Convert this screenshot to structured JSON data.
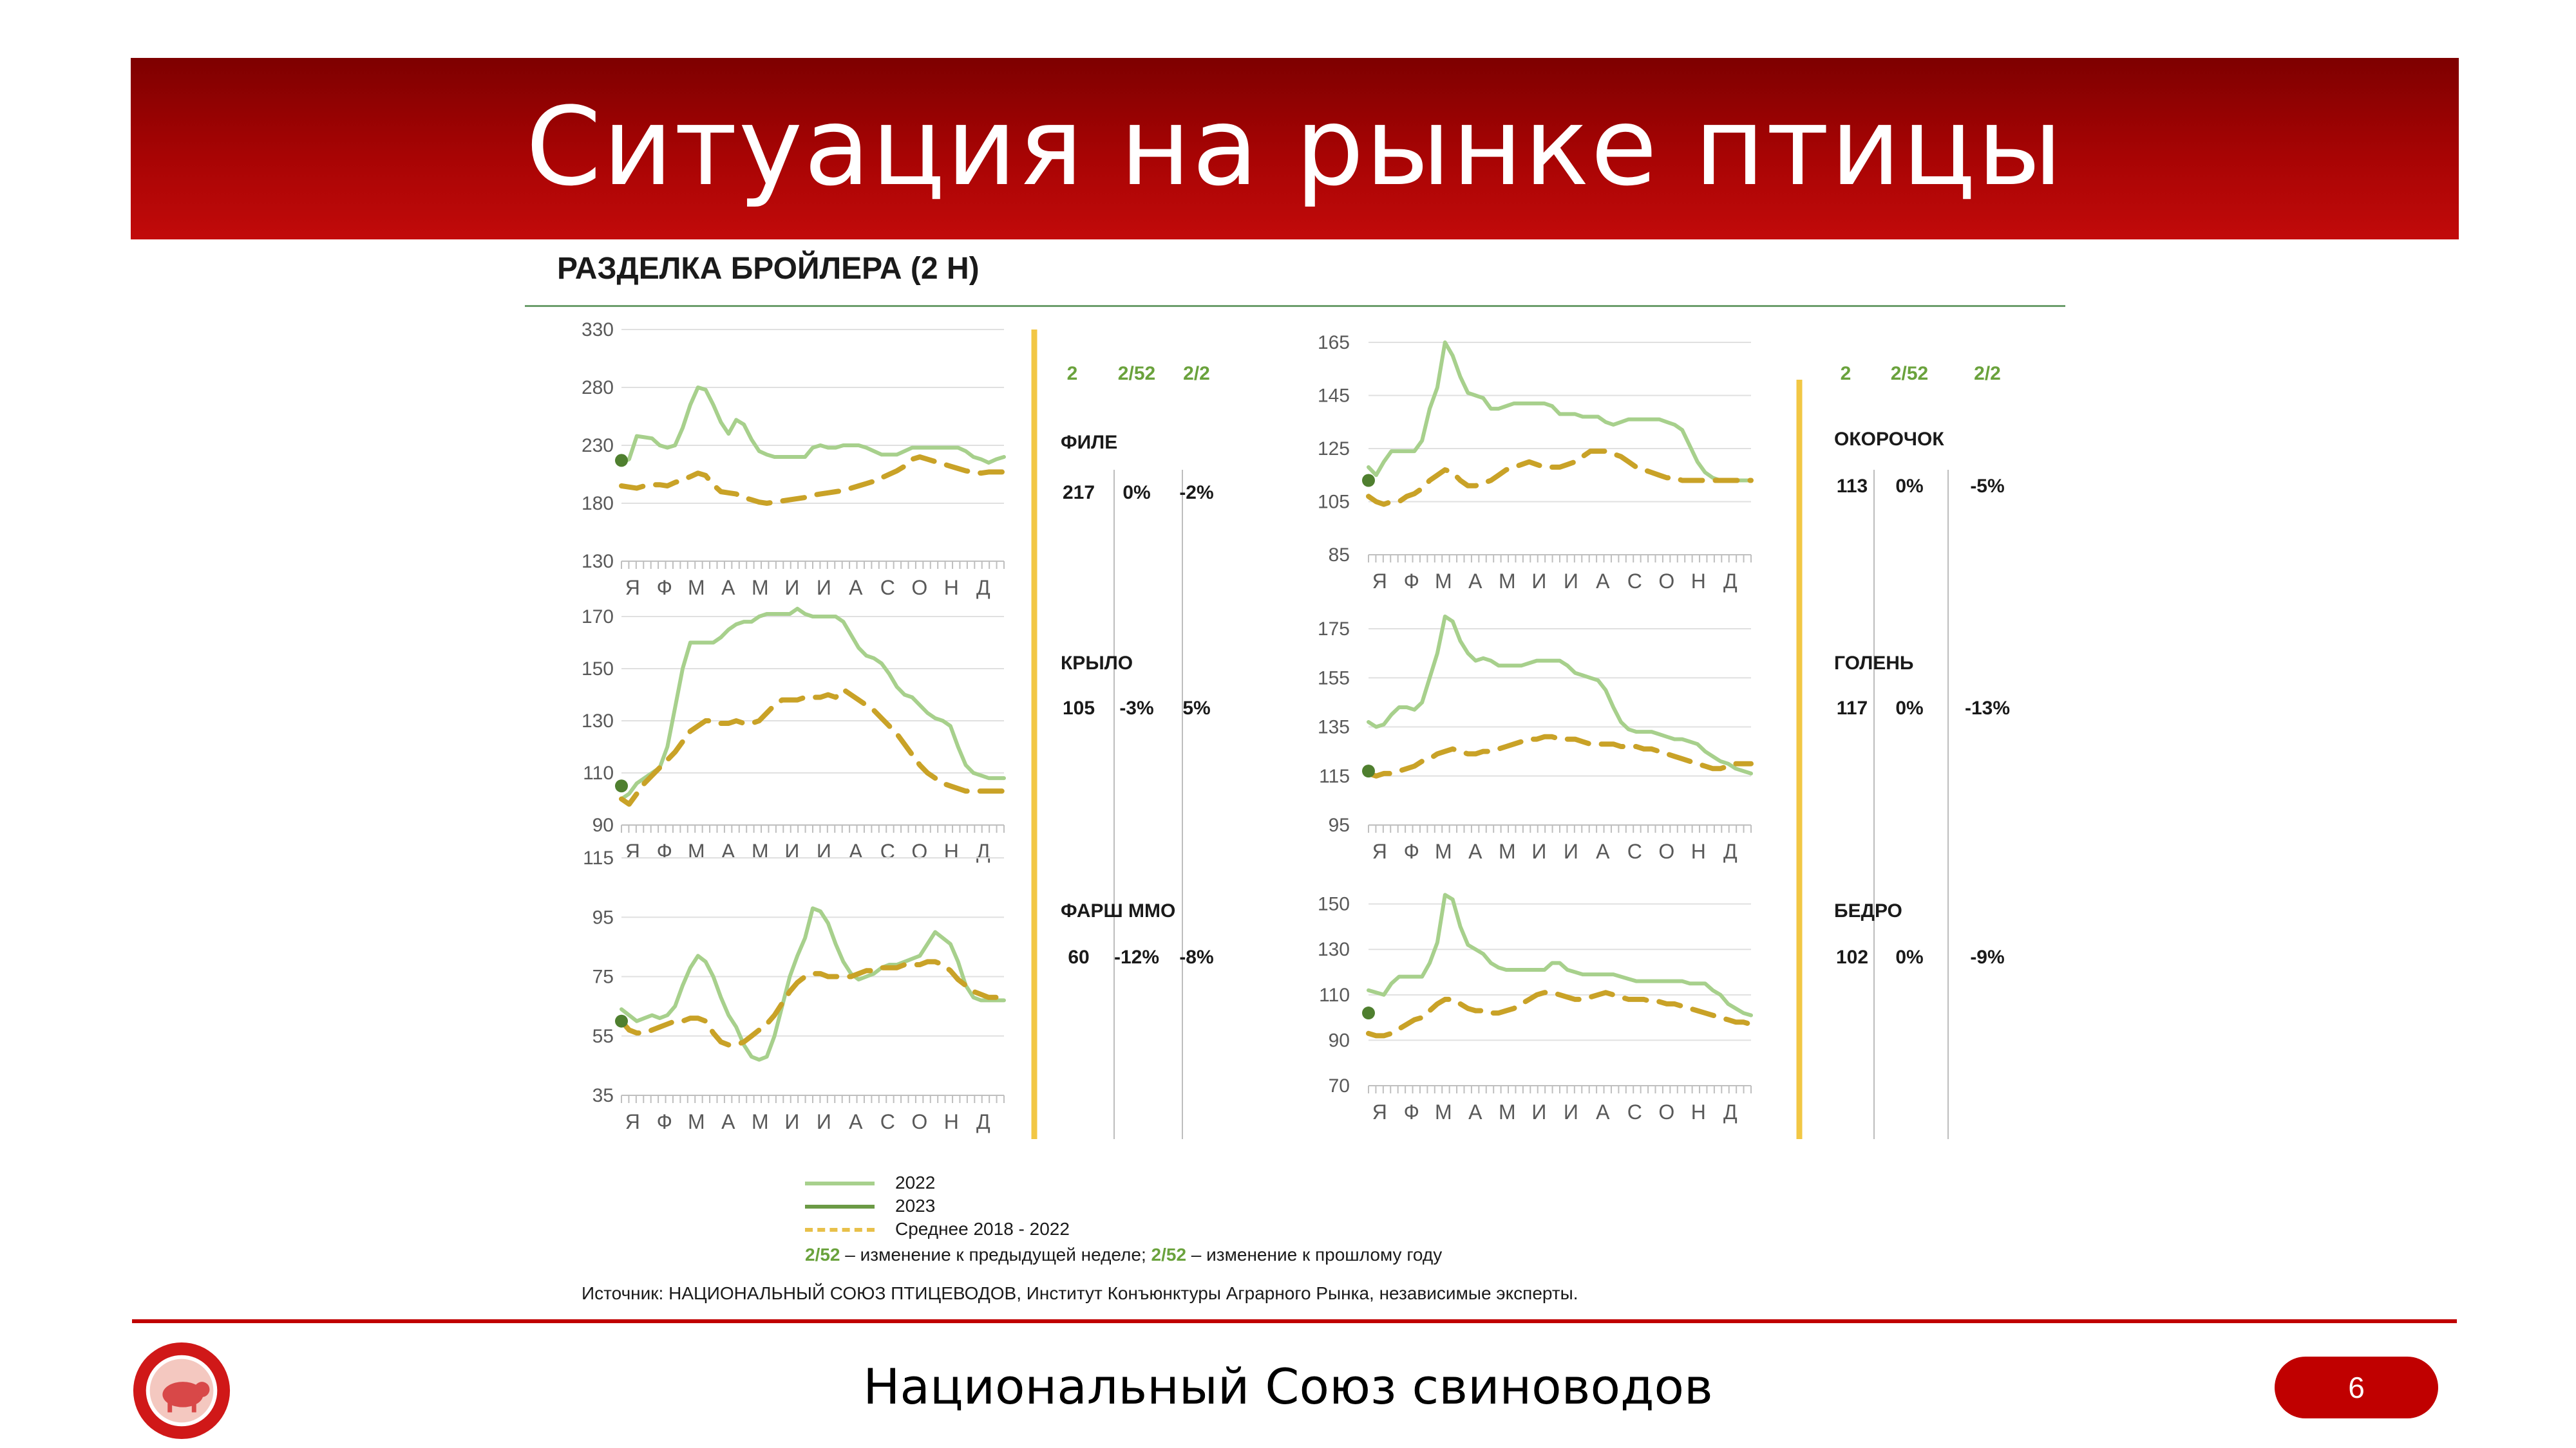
{
  "title": "Ситуация на рынке птицы",
  "subtitle": "РАЗДЕЛКА БРОЙЛЕРА (2 Н)",
  "table_header": [
    "2",
    "2/52",
    "2/2"
  ],
  "month_labels": [
    "Я",
    "Ф",
    "М",
    "А",
    "М",
    "И",
    "И",
    "А",
    "С",
    "О",
    "Н",
    "Д"
  ],
  "legend": [
    {
      "label": "2022",
      "color": "#a7d08c",
      "dash": false
    },
    {
      "label": "2023",
      "color": "#6b9a45",
      "dash": false
    },
    {
      "label": "Среднее 2018 - 2022",
      "color": "#c9a227",
      "dash": true
    }
  ],
  "footnote": {
    "key1": "2/52",
    "text1": " – изменение к предыдущей неделе; ",
    "key2": "2/52",
    "text2": " – изменение к прошлому году"
  },
  "source": "Источник: НАЦИОНАЛЬНЫЙ СОЮЗ ПТИЦЕВОДОВ, Институт Конъюнктуры Аграрного Рынка, независимые эксперты.",
  "footer": "Национальный Союз свиноводов",
  "page_number": "6",
  "colors": {
    "banner": "#a80404",
    "line_2022": "#a7d08c",
    "line_2023": "#4f7f2f",
    "avg": "#c9a227",
    "divider": "#f2c744",
    "table_header": "#6aa23c"
  },
  "chart_data": [
    {
      "type": "line",
      "name": "ФИЛЕ",
      "yticks": [
        130,
        180,
        230,
        280,
        330
      ],
      "ylim": [
        130,
        330
      ],
      "table": {
        "v2": "217",
        "v252": "0%",
        "v22": "-2%"
      },
      "series": [
        {
          "name": "2022",
          "values": [
            215,
            218,
            238,
            237,
            236,
            230,
            228,
            230,
            245,
            265,
            280,
            278,
            265,
            250,
            240,
            252,
            248,
            235,
            225,
            222,
            220,
            220,
            220,
            220,
            220,
            228,
            230,
            228,
            228,
            230,
            230,
            230,
            228,
            225,
            222,
            222,
            222,
            225,
            228,
            228,
            228,
            228,
            228,
            228,
            228,
            225,
            220,
            218,
            215,
            218,
            220
          ]
        },
        {
          "name": "2023",
          "values": [
            217,
            217
          ]
        },
        {
          "name": "Среднее 2018 - 2022",
          "values": [
            195,
            194,
            193,
            195,
            196,
            196,
            195,
            198,
            200,
            203,
            206,
            204,
            196,
            190,
            189,
            188,
            185,
            183,
            181,
            180,
            181,
            182,
            183,
            184,
            185,
            187,
            188,
            189,
            190,
            191,
            193,
            195,
            197,
            199,
            202,
            205,
            208,
            212,
            218,
            220,
            218,
            216,
            214,
            212,
            210,
            208,
            207,
            206,
            207,
            207,
            207
          ]
        }
      ]
    },
    {
      "type": "line",
      "name": "КРЫЛО",
      "yticks": [
        90,
        110,
        130,
        150,
        170
      ],
      "ylim": [
        90,
        170
      ],
      "table": {
        "v2": "105",
        "v252": "-3%",
        "v22": "5%"
      },
      "series": [
        {
          "name": "2022",
          "values": [
            100,
            102,
            106,
            108,
            110,
            112,
            120,
            135,
            150,
            160,
            160,
            160,
            160,
            162,
            165,
            167,
            168,
            168,
            170,
            171,
            171,
            171,
            171,
            173,
            171,
            170,
            170,
            170,
            170,
            168,
            163,
            158,
            155,
            154,
            152,
            148,
            143,
            140,
            139,
            136,
            133,
            131,
            130,
            128,
            120,
            113,
            110,
            109,
            108,
            108,
            108
          ]
        },
        {
          "name": "2023",
          "values": [
            105,
            105
          ]
        },
        {
          "name": "Среднее 2018 - 2022",
          "values": [
            100,
            98,
            102,
            106,
            109,
            112,
            115,
            118,
            122,
            126,
            128,
            130,
            130,
            129,
            129,
            130,
            129,
            129,
            130,
            133,
            136,
            138,
            138,
            138,
            139,
            139,
            139,
            140,
            139,
            142,
            140,
            138,
            136,
            134,
            131,
            128,
            125,
            121,
            117,
            113,
            110,
            108,
            106,
            105,
            104,
            103,
            103,
            103,
            103,
            103,
            103
          ]
        }
      ]
    },
    {
      "type": "line",
      "name": "ФАРШ ММО",
      "yticks": [
        35,
        55,
        75,
        95,
        115
      ],
      "ylim": [
        35,
        115
      ],
      "table": {
        "v2": "60",
        "v252": "-12%",
        "v22": "-8%"
      },
      "series": [
        {
          "name": "2022",
          "values": [
            64,
            62,
            60,
            61,
            62,
            61,
            62,
            65,
            72,
            78,
            82,
            80,
            75,
            68,
            62,
            58,
            52,
            48,
            47,
            48,
            55,
            65,
            75,
            82,
            88,
            98,
            97,
            93,
            86,
            80,
            76,
            74,
            75,
            76,
            78,
            79,
            79,
            80,
            81,
            82,
            86,
            90,
            88,
            86,
            80,
            72,
            68,
            67,
            67,
            67,
            67
          ]
        },
        {
          "name": "2023",
          "values": [
            60,
            60
          ]
        },
        {
          "name": "Среднее 2018 - 2022",
          "values": [
            60,
            57,
            56,
            56,
            57,
            58,
            59,
            60,
            60,
            61,
            61,
            60,
            56,
            53,
            52,
            52,
            53,
            55,
            57,
            59,
            62,
            66,
            70,
            73,
            75,
            76,
            76,
            75,
            75,
            75,
            75,
            76,
            77,
            77,
            78,
            78,
            78,
            79,
            79,
            79,
            80,
            80,
            79,
            77,
            74,
            72,
            70,
            69,
            68,
            68,
            68
          ]
        }
      ]
    },
    {
      "type": "line",
      "name": "ОКОРОЧОК",
      "yticks": [
        85,
        105,
        125,
        145,
        165
      ],
      "ylim": [
        85,
        165
      ],
      "table": {
        "v2": "113",
        "v252": "0%",
        "v22": "-5%"
      },
      "series": [
        {
          "name": "2022",
          "values": [
            118,
            115,
            120,
            124,
            124,
            124,
            124,
            128,
            140,
            148,
            165,
            160,
            152,
            146,
            145,
            144,
            140,
            140,
            141,
            142,
            142,
            142,
            142,
            142,
            141,
            138,
            138,
            138,
            137,
            137,
            137,
            135,
            134,
            135,
            136,
            136,
            136,
            136,
            136,
            135,
            134,
            132,
            126,
            120,
            116,
            114,
            113,
            113,
            113,
            113,
            113
          ]
        },
        {
          "name": "2023",
          "values": [
            113,
            113
          ]
        },
        {
          "name": "Среднее 2018 - 2022",
          "values": [
            107,
            105,
            104,
            105,
            105,
            107,
            108,
            110,
            113,
            115,
            117,
            116,
            113,
            111,
            111,
            112,
            113,
            115,
            117,
            118,
            119,
            120,
            119,
            118,
            118,
            118,
            119,
            120,
            122,
            124,
            124,
            124,
            123,
            122,
            120,
            118,
            117,
            116,
            115,
            114,
            114,
            113,
            113,
            113,
            113,
            113,
            113,
            113,
            113,
            113,
            113
          ]
        }
      ]
    },
    {
      "type": "line",
      "name": "ГОЛЕНЬ",
      "yticks": [
        95,
        115,
        135,
        155,
        175
      ],
      "ylim": [
        95,
        175
      ],
      "table": {
        "v2": "117",
        "v252": "0%",
        "v22": "-13%"
      },
      "series": [
        {
          "name": "2022",
          "values": [
            137,
            135,
            136,
            140,
            143,
            143,
            142,
            145,
            155,
            165,
            180,
            178,
            170,
            165,
            162,
            163,
            162,
            160,
            160,
            160,
            160,
            161,
            162,
            162,
            162,
            162,
            160,
            157,
            156,
            155,
            154,
            150,
            143,
            137,
            134,
            133,
            133,
            133,
            132,
            131,
            130,
            130,
            129,
            128,
            125,
            123,
            121,
            120,
            118,
            117,
            116
          ]
        },
        {
          "name": "2023",
          "values": [
            117,
            117
          ]
        },
        {
          "name": "Среднее 2018 - 2022",
          "values": [
            116,
            115,
            116,
            116,
            117,
            118,
            119,
            121,
            122,
            124,
            125,
            126,
            125,
            124,
            124,
            125,
            125,
            126,
            127,
            128,
            129,
            130,
            130,
            131,
            131,
            130,
            130,
            130,
            129,
            128,
            128,
            128,
            128,
            127,
            127,
            127,
            126,
            126,
            125,
            124,
            123,
            122,
            121,
            120,
            119,
            118,
            118,
            119,
            120,
            120,
            120
          ]
        }
      ]
    },
    {
      "type": "line",
      "name": "БЕДРО",
      "yticks": [
        70,
        90,
        110,
        130,
        150
      ],
      "ylim": [
        70,
        155
      ],
      "table": {
        "v2": "102",
        "v252": "0%",
        "v22": "-9%"
      },
      "series": [
        {
          "name": "2022",
          "values": [
            112,
            111,
            110,
            115,
            118,
            118,
            118,
            118,
            124,
            133,
            154,
            152,
            140,
            132,
            130,
            128,
            124,
            122,
            121,
            121,
            121,
            121,
            121,
            121,
            124,
            124,
            121,
            120,
            119,
            119,
            119,
            119,
            119,
            118,
            117,
            116,
            116,
            116,
            116,
            116,
            116,
            116,
            115,
            115,
            115,
            112,
            110,
            106,
            104,
            102,
            101
          ]
        },
        {
          "name": "2023",
          "values": [
            102,
            102
          ]
        },
        {
          "name": "Среднее 2018 - 2022",
          "values": [
            93,
            92,
            92,
            93,
            95,
            97,
            99,
            100,
            103,
            106,
            108,
            108,
            106,
            104,
            103,
            103,
            102,
            102,
            103,
            104,
            106,
            108,
            110,
            111,
            111,
            110,
            109,
            108,
            108,
            109,
            110,
            111,
            110,
            109,
            108,
            108,
            108,
            107,
            107,
            106,
            106,
            105,
            104,
            103,
            102,
            101,
            100,
            99,
            98,
            98,
            97
          ]
        }
      ]
    }
  ]
}
